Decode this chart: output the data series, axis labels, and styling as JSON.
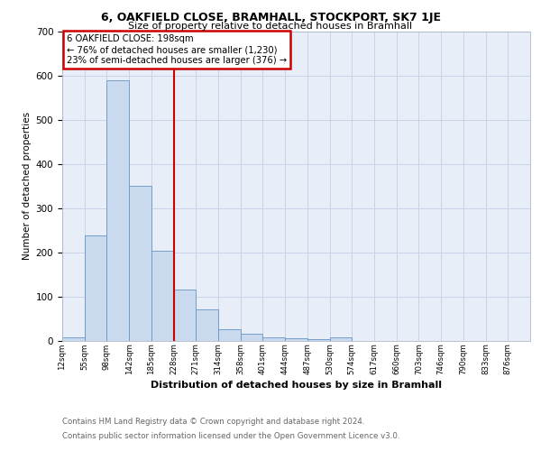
{
  "title1": "6, OAKFIELD CLOSE, BRAMHALL, STOCKPORT, SK7 1JE",
  "title2": "Size of property relative to detached houses in Bramhall",
  "xlabel": "Distribution of detached houses by size in Bramhall",
  "ylabel": "Number of detached properties",
  "footer1": "Contains HM Land Registry data © Crown copyright and database right 2024.",
  "footer2": "Contains public sector information licensed under the Open Government Licence v3.0.",
  "bin_labels": [
    "12sqm",
    "55sqm",
    "98sqm",
    "142sqm",
    "185sqm",
    "228sqm",
    "271sqm",
    "314sqm",
    "358sqm",
    "401sqm",
    "444sqm",
    "487sqm",
    "530sqm",
    "574sqm",
    "617sqm",
    "660sqm",
    "703sqm",
    "746sqm",
    "790sqm",
    "833sqm",
    "876sqm"
  ],
  "bar_heights": [
    8,
    238,
    590,
    350,
    203,
    116,
    70,
    25,
    15,
    8,
    5,
    4,
    8,
    0,
    0,
    0,
    0,
    0,
    0,
    0,
    0
  ],
  "bar_color": "#c9d9ee",
  "bar_edge_color": "#6694c8",
  "vline_color": "#cc0000",
  "annotation_text": "6 OAKFIELD CLOSE: 198sqm\n← 76% of detached houses are smaller (1,230)\n23% of semi-detached houses are larger (376) →",
  "annotation_box_color": "#ffffff",
  "annotation_box_edge": "#cc0000",
  "ylim": [
    0,
    700
  ],
  "yticks": [
    0,
    100,
    200,
    300,
    400,
    500,
    600,
    700
  ],
  "grid_color": "#c8d4e8",
  "plot_bg_color": "#e8eef8"
}
